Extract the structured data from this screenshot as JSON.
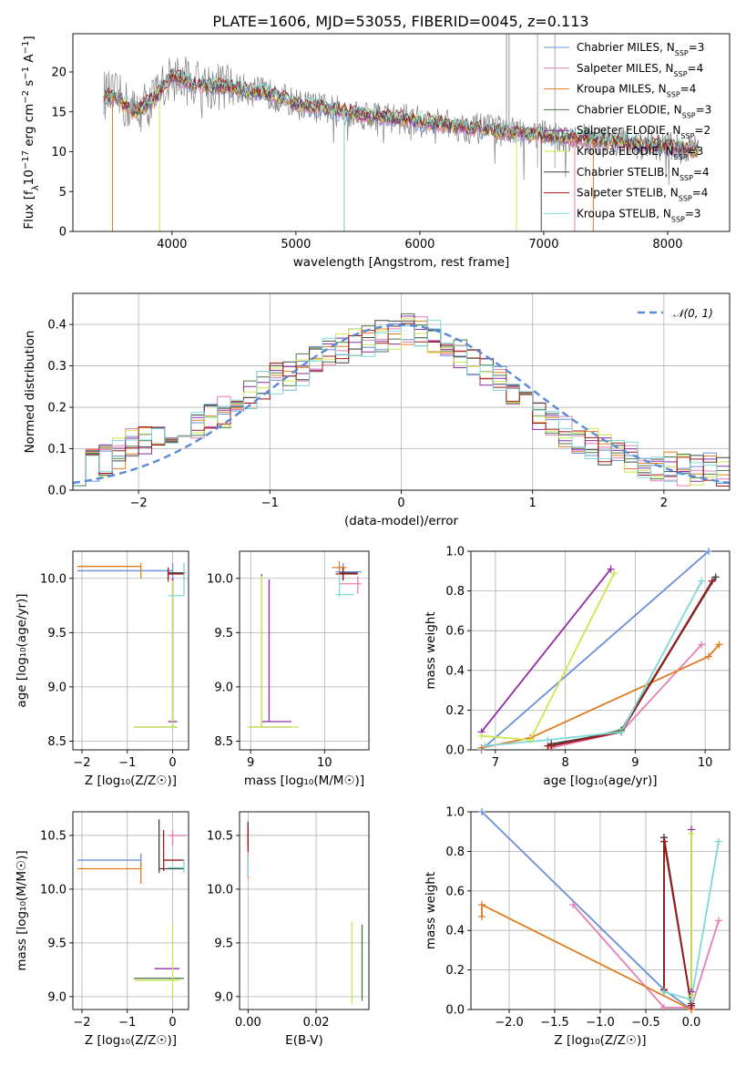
{
  "figure": {
    "title": "PLATE=1606, MJD=53055, FIBERID=0045, z=0.113",
    "models": [
      {
        "name": "Chabrier MILES, N",
        "sub": "SSP",
        "n": "=3",
        "color": "#6a8fd8"
      },
      {
        "name": "Salpeter MILES, N",
        "sub": "SSP",
        "n": "=4",
        "color": "#e57fb5"
      },
      {
        "name": "Kroupa MILES, N",
        "sub": "SSP",
        "n": "=4",
        "color": "#e07b22"
      },
      {
        "name": "Chabrier ELODIE, N",
        "sub": "SSP",
        "n": "=3",
        "color": "#4d7a44"
      },
      {
        "name": "Salpeter ELODIE, N",
        "sub": "SSP",
        "n": "=2",
        "color": "#8e2ca8"
      },
      {
        "name": "Kroupa ELODIE, N",
        "sub": "SSP",
        "n": "=3",
        "color": "#cde650"
      },
      {
        "name": "Chabrier STELIB, N",
        "sub": "SSP",
        "n": "=4",
        "color": "#444444"
      },
      {
        "name": "Salpeter STELIB, N",
        "sub": "SSP",
        "n": "=4",
        "color": "#a01a1a"
      },
      {
        "name": "Kroupa STELIB, N",
        "sub": "SSP",
        "n": "=3",
        "color": "#7fd8d8"
      }
    ],
    "data_color": "#808080",
    "normal_color": "#5b8bd6"
  },
  "chart_data": [
    {
      "id": "spectrum",
      "type": "line",
      "xlabel": "wavelength [Angstrom, rest frame]",
      "ylabel_html": "Flux [f<tspan baseline-shift='sub' font-size='10'>λ</tspan>10<tspan baseline-shift='super' font-size='10'>−17</tspan> erg cm<tspan baseline-shift='super' font-size='10'>−2</tspan> s<tspan baseline-shift='super' font-size='10'>−1</tspan> A<tspan baseline-shift='super' font-size='10'>−1</tspan>]",
      "xlim": [
        3200,
        8500
      ],
      "ylim": [
        0,
        24.8
      ],
      "xticks": [
        4000,
        5000,
        6000,
        7000,
        8000
      ],
      "yticks": [
        0,
        5,
        10,
        15,
        20
      ],
      "continuum": [
        [
          3450,
          17.2
        ],
        [
          3550,
          16.8
        ],
        [
          3700,
          15.0
        ],
        [
          3850,
          16.5
        ],
        [
          4000,
          19.5
        ],
        [
          4200,
          18.5
        ],
        [
          4500,
          18.0
        ],
        [
          4800,
          17.2
        ],
        [
          5000,
          16.0
        ],
        [
          5300,
          15.2
        ],
        [
          5600,
          14.6
        ],
        [
          6000,
          13.8
        ],
        [
          6400,
          13.0
        ],
        [
          6800,
          12.3
        ],
        [
          7200,
          11.8
        ],
        [
          7600,
          11.2
        ],
        [
          8000,
          10.6
        ],
        [
          8250,
          10.2
        ]
      ]
    },
    {
      "id": "residuals",
      "type": "line",
      "xlabel": "(data-model)/error",
      "ylabel": "Normed distribution",
      "legend": "𝒩(0, 1)",
      "xlim": [
        -2.5,
        2.5
      ],
      "ylim": [
        0,
        0.475
      ],
      "xticks": [
        -2,
        -1,
        0,
        1,
        2
      ],
      "yticks": [
        0.0,
        0.1,
        0.2,
        0.3,
        0.4
      ],
      "base_hist": [
        0.05,
        0.06,
        0.07,
        0.09,
        0.11,
        0.12,
        0.14,
        0.15,
        0.15,
        0.16,
        0.17,
        0.19,
        0.21,
        0.23,
        0.25,
        0.27,
        0.28,
        0.29,
        0.31,
        0.33,
        0.34,
        0.35,
        0.36,
        0.37,
        0.38,
        0.39,
        0.38,
        0.37,
        0.35,
        0.33,
        0.31,
        0.29,
        0.26,
        0.23,
        0.2,
        0.18,
        0.16,
        0.14,
        0.12,
        0.11,
        0.1,
        0.09,
        0.08,
        0.07,
        0.06,
        0.06,
        0.05,
        0.05,
        0.05,
        0.04
      ],
      "bin_width": 0.1
    },
    {
      "id": "age-vs-Z",
      "type": "scatter",
      "xlabel": "Z [log₁₀(Z/Z☉)]",
      "ylabel": "age  [log₁₀(age/yr)]",
      "xlim": [
        -2.2,
        0.35
      ],
      "ylim": [
        8.42,
        10.25
      ],
      "xticks": [
        -2,
        -1,
        0
      ],
      "yticks": [
        8.5,
        9.0,
        9.5,
        10.0
      ],
      "errorbars": [
        {
          "m": 0,
          "x": 0.0,
          "xl": -2.1,
          "xh": 0.0,
          "y": 10.07,
          "yl": 9.97,
          "yh": 10.14
        },
        {
          "m": 1,
          "x": 0.25,
          "xl": 0.0,
          "xh": 0.3,
          "y": 10.05,
          "yl": 9.97,
          "yh": 10.14
        },
        {
          "m": 2,
          "x": -0.7,
          "xl": -2.1,
          "xh": -0.7,
          "y": 10.11,
          "yl": 10.0,
          "yh": 10.14
        },
        {
          "m": 3,
          "x": 0.0,
          "xl": -0.85,
          "xh": 0.1,
          "y": 8.63,
          "yl": 8.63,
          "yh": 10.0
        },
        {
          "m": 4,
          "x": 0.0,
          "xl": -0.1,
          "xh": 0.1,
          "y": 8.68,
          "yl": 8.68,
          "yh": 10.0
        },
        {
          "m": 5,
          "x": 0.0,
          "xl": -0.85,
          "xh": 0.1,
          "y": 8.63,
          "yl": 8.63,
          "yh": 9.98
        },
        {
          "m": 6,
          "x": -0.1,
          "xl": -0.1,
          "xh": 0.25,
          "y": 10.05,
          "yl": 10.0,
          "yh": 10.1
        },
        {
          "m": 7,
          "x": -0.1,
          "xl": -0.1,
          "xh": 0.25,
          "y": 10.04,
          "yl": 9.97,
          "yh": 10.1
        },
        {
          "m": 8,
          "x": 0.25,
          "xl": -0.1,
          "xh": 0.25,
          "y": 9.84,
          "yl": 9.84,
          "yh": 10.14
        }
      ]
    },
    {
      "id": "age-vs-mass",
      "type": "scatter",
      "xlabel": "mass [log₁₀(M/M☉)]",
      "ylabel": "",
      "xlim": [
        8.85,
        10.6
      ],
      "ylim": [
        8.42,
        10.25
      ],
      "xticks": [
        9,
        10
      ],
      "yticks": [
        8.5,
        9.0,
        9.5,
        10.0
      ],
      "errorbars": [
        {
          "m": 0,
          "x": 10.25,
          "xl": 10.15,
          "xh": 10.5,
          "y": 10.06,
          "yl": 9.98,
          "yh": 10.14
        },
        {
          "m": 1,
          "x": 10.45,
          "xl": 10.2,
          "xh": 10.5,
          "y": 9.95,
          "yl": 9.86,
          "yh": 10.02
        },
        {
          "m": 2,
          "x": 10.2,
          "xl": 10.1,
          "xh": 10.3,
          "y": 10.1,
          "yl": 10.04,
          "yh": 10.16
        },
        {
          "m": 3,
          "x": 9.15,
          "xl": 9.0,
          "xh": 9.55,
          "y": 8.63,
          "yl": 8.63,
          "yh": 10.04
        },
        {
          "m": 4,
          "x": 9.25,
          "xl": 9.15,
          "xh": 9.55,
          "y": 8.68,
          "yl": 8.68,
          "yh": 9.99
        },
        {
          "m": 5,
          "x": 9.15,
          "xl": 8.95,
          "xh": 9.65,
          "y": 8.63,
          "yl": 8.63,
          "yh": 10.02
        },
        {
          "m": 6,
          "x": 10.25,
          "xl": 10.2,
          "xh": 10.45,
          "y": 10.05,
          "yl": 10.0,
          "yh": 10.1
        },
        {
          "m": 7,
          "x": 10.25,
          "xl": 10.15,
          "xh": 10.45,
          "y": 10.04,
          "yl": 9.98,
          "yh": 10.1
        },
        {
          "m": 8,
          "x": 10.2,
          "xl": 10.15,
          "xh": 10.4,
          "y": 9.85,
          "yl": 9.83,
          "yh": 10.04
        }
      ]
    },
    {
      "id": "weight-vs-age",
      "type": "line",
      "xlabel": "age  [log₁₀(age/yr)]",
      "ylabel": "mass weight",
      "xlim": [
        6.65,
        10.35
      ],
      "ylim": [
        0,
        1.0
      ],
      "xticks": [
        7,
        8,
        9,
        10
      ],
      "yticks": [
        0.0,
        0.2,
        0.4,
        0.6,
        0.8,
        1.0
      ],
      "series": [
        {
          "m": 0,
          "pts": [
            [
              6.8,
              0.0
            ],
            [
              10.05,
              1.0
            ]
          ]
        },
        {
          "m": 1,
          "pts": [
            [
              7.8,
              0.01
            ],
            [
              8.8,
              0.09
            ],
            [
              9.95,
              0.53
            ]
          ]
        },
        {
          "m": 2,
          "pts": [
            [
              6.8,
              0.01
            ],
            [
              7.5,
              0.06
            ],
            [
              10.05,
              0.47
            ],
            [
              10.2,
              0.53
            ]
          ]
        },
        {
          "m": 3,
          "pts": [
            [
              7.8,
              0.02
            ],
            [
              8.8,
              0.1
            ],
            [
              10.15,
              0.87
            ]
          ]
        },
        {
          "m": 4,
          "pts": [
            [
              6.8,
              0.09
            ],
            [
              8.65,
              0.91
            ]
          ]
        },
        {
          "m": 5,
          "pts": [
            [
              6.8,
              0.07
            ],
            [
              7.5,
              0.05
            ],
            [
              8.7,
              0.89
            ]
          ]
        },
        {
          "m": 6,
          "pts": [
            [
              7.75,
              0.02
            ],
            [
              7.8,
              0.03
            ],
            [
              8.8,
              0.09
            ],
            [
              10.15,
              0.87
            ]
          ]
        },
        {
          "m": 7,
          "pts": [
            [
              7.75,
              0.02
            ],
            [
              7.8,
              0.02
            ],
            [
              8.8,
              0.09
            ],
            [
              10.1,
              0.85
            ]
          ]
        },
        {
          "m": 8,
          "pts": [
            [
              6.85,
              0.02
            ],
            [
              7.75,
              0.05
            ],
            [
              8.8,
              0.09
            ],
            [
              9.95,
              0.85
            ]
          ]
        }
      ]
    },
    {
      "id": "mass-vs-Z",
      "type": "scatter",
      "xlabel": "Z [log₁₀(Z/Z☉)]",
      "ylabel": "mass [log₁₀(M/M☉)]",
      "xlim": [
        -2.2,
        0.35
      ],
      "ylim": [
        8.88,
        10.72
      ],
      "xticks": [
        -2,
        -1,
        0
      ],
      "yticks": [
        9.0,
        9.5,
        10.0,
        10.5
      ],
      "errorbars": [
        {
          "m": 0,
          "x": -0.7,
          "xl": -2.1,
          "xh": -0.7,
          "y": 10.27,
          "yl": 10.2,
          "yh": 10.33
        },
        {
          "m": 1,
          "x": 0.0,
          "xl": -0.1,
          "xh": 0.3,
          "y": 10.5,
          "yl": 10.4,
          "yh": 10.55
        },
        {
          "m": 2,
          "x": -0.7,
          "xl": -2.1,
          "xh": -0.7,
          "y": 10.19,
          "yl": 10.05,
          "yh": 10.25
        },
        {
          "m": 3,
          "x": 0.0,
          "xl": -0.85,
          "xh": 0.25,
          "y": 9.17,
          "yl": 9.15,
          "yh": 9.18
        },
        {
          "m": 4,
          "x": 0.0,
          "xl": -0.4,
          "xh": 0.15,
          "y": 9.26,
          "yl": 9.26,
          "yh": 9.26
        },
        {
          "m": 5,
          "x": 0.0,
          "xl": -0.85,
          "xh": 0.15,
          "y": 9.15,
          "yl": 8.98,
          "yh": 9.67
        },
        {
          "m": 6,
          "x": -0.3,
          "xl": -0.3,
          "xh": 0.25,
          "y": 10.19,
          "yl": 10.15,
          "yh": 10.65
        },
        {
          "m": 7,
          "x": -0.2,
          "xl": -0.2,
          "xh": 0.25,
          "y": 10.27,
          "yl": 10.17,
          "yh": 10.55
        },
        {
          "m": 8,
          "x": 0.25,
          "xl": -0.1,
          "xh": 0.25,
          "y": 10.2,
          "yl": 10.15,
          "yh": 10.28
        }
      ]
    },
    {
      "id": "mass-vs-ebv",
      "type": "scatter",
      "xlabel": "E(B-V)",
      "ylabel": "",
      "xlim": [
        -0.0025,
        0.0355
      ],
      "ylim": [
        8.88,
        10.72
      ],
      "xticks": [
        0.0,
        0.02
      ],
      "yticks": [
        9.0,
        9.5,
        10.0,
        10.5
      ],
      "errorbars": [
        {
          "m": 0,
          "x": 0.0,
          "xl": 0.0,
          "xh": 0.0,
          "y": 10.27,
          "yl": 10.15,
          "yh": 10.33
        },
        {
          "m": 1,
          "x": 0.0,
          "xl": 0.0,
          "xh": 0.0,
          "y": 10.5,
          "yl": 10.2,
          "yh": 10.6
        },
        {
          "m": 2,
          "x": 0.0,
          "xl": 0.0,
          "xh": 0.0,
          "y": 10.2,
          "yl": 10.1,
          "yh": 10.28
        },
        {
          "m": 3,
          "x": 0.0335,
          "xl": 0.0335,
          "xh": 0.0335,
          "y": 9.17,
          "yl": 8.96,
          "yh": 9.67
        },
        {
          "m": 4,
          "x": 0.0,
          "xl": 0.0,
          "xh": 0.0,
          "y": 10.55,
          "yl": 10.45,
          "yh": 10.63
        },
        {
          "m": 5,
          "x": 0.0305,
          "xl": 0.0305,
          "xh": 0.0305,
          "y": 9.15,
          "yl": 8.93,
          "yh": 9.7
        },
        {
          "m": 6,
          "x": 0.0,
          "xl": 0.0,
          "xh": 0.0,
          "y": 10.5,
          "yl": 10.4,
          "yh": 10.62
        },
        {
          "m": 7,
          "x": 0.0,
          "xl": 0.0,
          "xh": 0.0,
          "y": 10.45,
          "yl": 10.35,
          "yh": 10.58
        },
        {
          "m": 8,
          "x": 0.0,
          "xl": 0.0,
          "xh": 0.0,
          "y": 10.2,
          "yl": 10.12,
          "yh": 10.3
        }
      ]
    },
    {
      "id": "weight-vs-Z",
      "type": "line",
      "xlabel": "Z [log₁₀(Z/Z☉)]",
      "ylabel": "mass weight",
      "xlim": [
        -2.42,
        0.42
      ],
      "ylim": [
        0,
        1.0
      ],
      "xticks": [
        -2.0,
        -1.5,
        -1.0,
        -0.5,
        0.0
      ],
      "yticks": [
        0.0,
        0.2,
        0.4,
        0.6,
        0.8,
        1.0
      ],
      "series": [
        {
          "m": 0,
          "pts": [
            [
              -2.3,
              1.0
            ],
            [
              -0.3,
              0.1
            ],
            [
              0.0,
              0.0
            ]
          ]
        },
        {
          "m": 1,
          "pts": [
            [
              -1.3,
              0.53
            ],
            [
              -0.3,
              0.01
            ],
            [
              0.0,
              0.01
            ],
            [
              0.3,
              0.45
            ]
          ]
        },
        {
          "m": 2,
          "pts": [
            [
              -2.3,
              0.47
            ],
            [
              -2.3,
              0.53
            ],
            [
              0.0,
              0.0
            ]
          ]
        },
        {
          "m": 3,
          "pts": [
            [
              -0.3,
              0.09
            ],
            [
              -0.3,
              0.87
            ],
            [
              0.0,
              0.02
            ]
          ]
        },
        {
          "m": 4,
          "pts": [
            [
              0.0,
              0.09
            ],
            [
              0.0,
              0.91
            ]
          ]
        },
        {
          "m": 5,
          "pts": [
            [
              0.0,
              0.05
            ],
            [
              0.0,
              0.89
            ],
            [
              0.0,
              0.07
            ]
          ]
        },
        {
          "m": 6,
          "pts": [
            [
              -0.3,
              0.1
            ],
            [
              -0.3,
              0.87
            ],
            [
              0.0,
              0.02
            ],
            [
              0.0,
              0.03
            ]
          ]
        },
        {
          "m": 7,
          "pts": [
            [
              -0.3,
              0.1
            ],
            [
              -0.3,
              0.85
            ],
            [
              0.0,
              0.02
            ],
            [
              0.0,
              0.02
            ]
          ]
        },
        {
          "m": 8,
          "pts": [
            [
              -0.3,
              0.09
            ],
            [
              0.0,
              0.05
            ],
            [
              0.3,
              0.85
            ]
          ]
        }
      ]
    }
  ]
}
